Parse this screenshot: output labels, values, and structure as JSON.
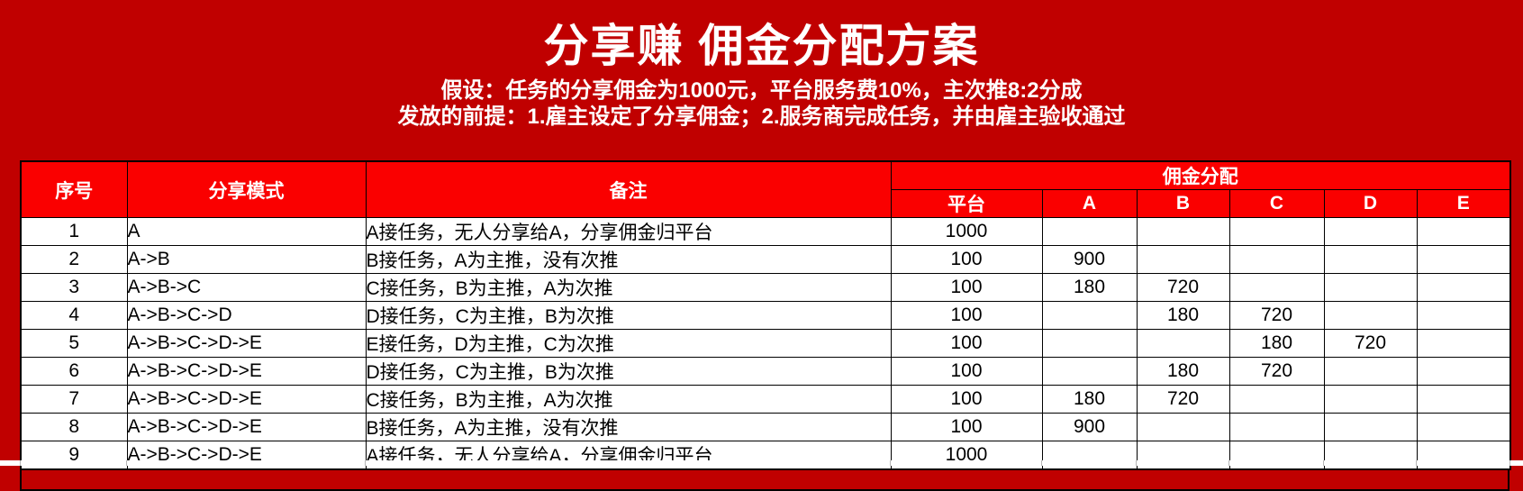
{
  "header": {
    "title": "分享赚 佣金分配方案",
    "assumption": "假设：任务的分享佣金为1000元，平台服务费10%，主次推8:2分成",
    "precondition": "发放的前提：1.雇主设定了分享佣金；2.服务商完成任务，并由雇主验收通过"
  },
  "table": {
    "col_headers": [
      "序号",
      "分享模式",
      "备注"
    ],
    "group_header": "佣金分配",
    "sub_headers": [
      "平台",
      "A",
      "B",
      "C",
      "D",
      "E"
    ],
    "rows": [
      {
        "no": "1",
        "mode": "A",
        "note": "A接任务，无人分享给A，分享佣金归平台",
        "values": [
          "1000",
          "",
          "",
          "",
          "",
          ""
        ]
      },
      {
        "no": "2",
        "mode": "A->B",
        "note": "B接任务，A为主推，没有次推",
        "values": [
          "100",
          "900",
          "",
          "",
          "",
          ""
        ]
      },
      {
        "no": "3",
        "mode": "A->B->C",
        "note": "C接任务，B为主推，A为次推",
        "values": [
          "100",
          "180",
          "720",
          "",
          "",
          ""
        ]
      },
      {
        "no": "4",
        "mode": "A->B->C->D",
        "note": "D接任务，C为主推，B为次推",
        "values": [
          "100",
          "",
          "180",
          "720",
          "",
          ""
        ]
      },
      {
        "no": "5",
        "mode": "A->B->C->D->E",
        "note": "E接任务，D为主推，C为次推",
        "values": [
          "100",
          "",
          "",
          "180",
          "720",
          ""
        ]
      },
      {
        "no": "6",
        "mode": "A->B->C->D->E",
        "note": "D接任务，C为主推，B为次推",
        "values": [
          "100",
          "",
          "180",
          "720",
          "",
          ""
        ]
      },
      {
        "no": "7",
        "mode": "A->B->C->D->E",
        "note": "C接任务，B为主推，A为次推",
        "values": [
          "100",
          "180",
          "720",
          "",
          "",
          ""
        ]
      },
      {
        "no": "8",
        "mode": "A->B->C->D->E",
        "note": "B接任务，A为主推，没有次推",
        "values": [
          "100",
          "900",
          "",
          "",
          "",
          ""
        ]
      },
      {
        "no": "9",
        "mode": "A->B->C->D->E",
        "note": "A接任务，无人分享给A，分享佣金归平台",
        "values": [
          "1000",
          "",
          "",
          "",
          "",
          ""
        ]
      }
    ]
  },
  "colors": {
    "background": "#c00000",
    "header_fill": "#fa0000",
    "row_fill": "#ffffff",
    "border": "#000000",
    "title_text": "#ffffff",
    "cell_text": "#000000"
  }
}
